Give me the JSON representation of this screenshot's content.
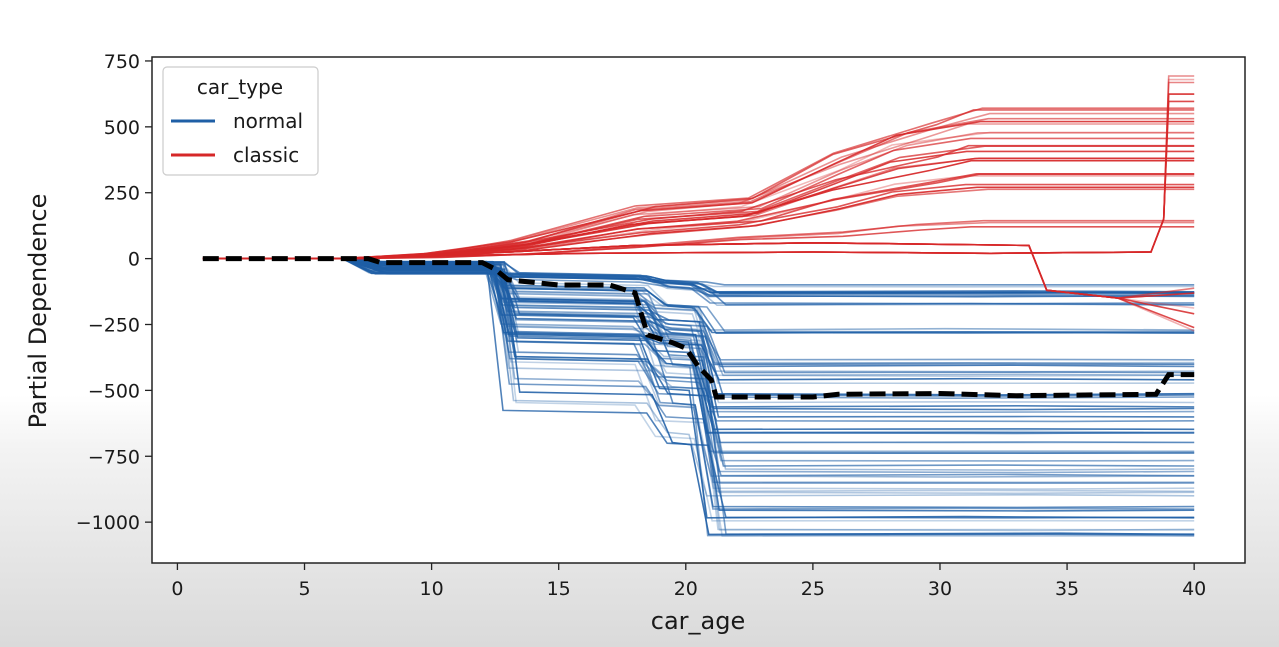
{
  "chart_data": {
    "type": "line",
    "xlabel": "car_age",
    "ylabel": "Partial Dependence",
    "xlim": [
      -1,
      42
    ],
    "ylim": [
      -1155,
      765
    ],
    "xticks": [
      0,
      5,
      10,
      15,
      20,
      25,
      30,
      35,
      40
    ],
    "yticks": [
      750,
      500,
      250,
      0,
      -250,
      -500,
      -750,
      -1000
    ],
    "ytick_labels": [
      "750",
      "500",
      "250",
      "0",
      "−250",
      "−500",
      "−750",
      "−1000"
    ],
    "grid": false,
    "legend": {
      "title": "car_type",
      "placement": "top-left",
      "entries": [
        {
          "label": "normal",
          "color": "#1f5fa6"
        },
        {
          "label": "classic",
          "color": "#d62728"
        }
      ]
    },
    "colors": {
      "normal": "#1f5fa6",
      "classic": "#d62728",
      "average": "#000000"
    },
    "series": [
      {
        "name": "normal",
        "kind": "individual-curves",
        "representative_final_values": [
          -115,
          -130,
          -160,
          -265,
          -400,
          -420,
          -460,
          -510,
          -560,
          -600,
          -640,
          -680,
          -720,
          -780,
          -820,
          -860,
          -900,
          -940,
          -985,
          -1030,
          -1065
        ]
      },
      {
        "name": "classic",
        "kind": "individual-curves",
        "representative_final_values": [
          680,
          610,
          560,
          520,
          470,
          420,
          370,
          320,
          270,
          130,
          -120,
          -200,
          -260
        ]
      },
      {
        "name": "average",
        "kind": "dashed-average",
        "x": [
          1,
          6,
          7.5,
          8,
          12,
          12.5,
          13,
          15,
          17,
          18,
          18.5,
          19.5,
          20,
          20.5,
          21,
          21.2,
          25,
          26,
          30,
          33,
          38.5,
          39,
          40
        ],
        "y": [
          0,
          0,
          0,
          -15,
          -15,
          -40,
          -80,
          -100,
          -100,
          -130,
          -290,
          -320,
          -340,
          -410,
          -460,
          -525,
          -525,
          -515,
          -512,
          -520,
          -515,
          -440,
          -440
        ]
      }
    ]
  }
}
